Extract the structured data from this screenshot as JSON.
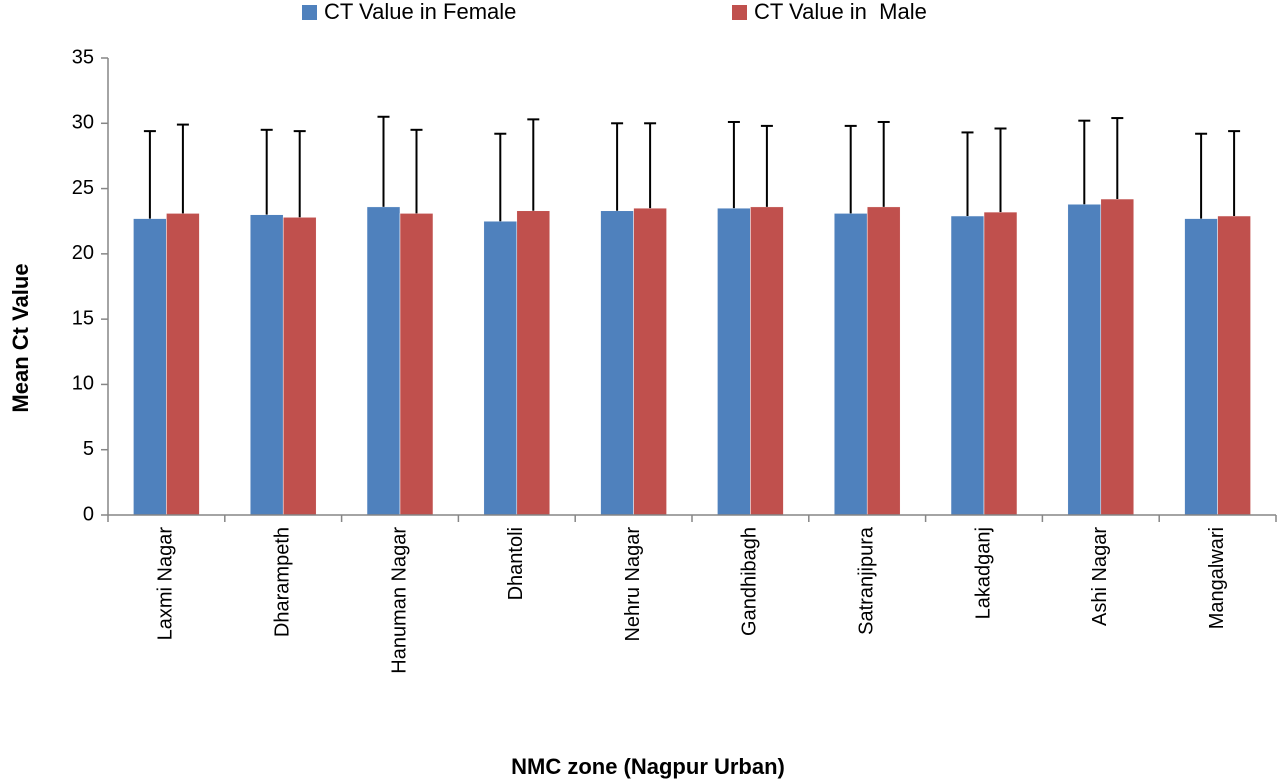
{
  "chart_data": {
    "type": "bar",
    "title": "",
    "xlabel": "NMC zone (Nagpur Urban)",
    "ylabel": "Mean Ct Value",
    "ylim": [
      0,
      35
    ],
    "yticks": [
      0,
      5,
      10,
      15,
      20,
      25,
      30,
      35
    ],
    "grid": false,
    "legend_position": "top",
    "categories": [
      "Laxmi Nagar",
      "Dharampeth",
      "Hanuman Nagar",
      "Dhantoli",
      "Nehru Nagar",
      "Gandhibagh",
      "Satranjipura",
      "Lakadganj",
      "Ashi Nagar",
      "Mangalwari"
    ],
    "series": [
      {
        "name": "CT Value in Female",
        "color": "#4F81BD",
        "values": [
          22.7,
          23.0,
          23.6,
          22.5,
          23.3,
          23.5,
          23.1,
          22.9,
          23.8,
          22.7
        ],
        "error_upper": [
          29.4,
          29.5,
          30.5,
          29.2,
          30.0,
          30.1,
          29.8,
          29.3,
          30.2,
          29.2
        ]
      },
      {
        "name": "CT Value in  Male",
        "color": "#C0504D",
        "values": [
          23.1,
          22.8,
          23.1,
          23.3,
          23.5,
          23.6,
          23.6,
          23.2,
          24.2,
          22.9
        ],
        "error_upper": [
          29.9,
          29.4,
          29.5,
          30.3,
          30.0,
          29.8,
          30.1,
          29.6,
          30.4,
          29.4
        ]
      }
    ]
  }
}
